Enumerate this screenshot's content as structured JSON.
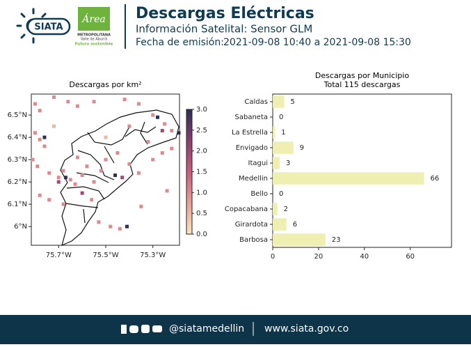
{
  "header": {
    "logo_text": "SIATA",
    "area_logo": {
      "title": "Área",
      "line1": "METROPOLITANA",
      "line2": "Valle de Aburrá",
      "tagline": "Futuro sostenible"
    },
    "title": "Descargas Eléctricas",
    "subtitle": "Información Satelital: Sensor GLM",
    "date_label": "Fecha de emisión:",
    "date_range": "2021-09-08 10:40 a 2021-09-08 15:30"
  },
  "chart_data": [
    {
      "type": "map",
      "title": "Descargas por km²",
      "xlim": [
        -75.816,
        -75.187
      ],
      "ylim": [
        5.916,
        6.594
      ],
      "xticks": [
        {
          "value": -75.7,
          "label": "75.7°W"
        },
        {
          "value": -75.5,
          "label": "75.5°W"
        },
        {
          "value": -75.3,
          "label": "75.3°W"
        }
      ],
      "yticks": [
        {
          "value": 6.5,
          "label": "6.5°N"
        },
        {
          "value": 6.4,
          "label": "6.4°N"
        },
        {
          "value": 6.3,
          "label": "6.3°N"
        },
        {
          "value": 6.2,
          "label": "6.2°N"
        },
        {
          "value": 6.1,
          "label": "6.1°N"
        },
        {
          "value": 6.0,
          "label": "6°N"
        }
      ],
      "colorbar_lim": [
        0,
        3
      ],
      "colorbar_ticks": [
        {
          "value": 0,
          "label": "0.0"
        },
        {
          "value": 0.5,
          "label": "0.5"
        },
        {
          "value": 1,
          "label": "1.0"
        },
        {
          "value": 1.5,
          "label": "1.5"
        },
        {
          "value": 2,
          "label": "2.0"
        },
        {
          "value": 2.5,
          "label": "2.5"
        },
        {
          "value": 3,
          "label": "3.0"
        }
      ],
      "colormap": [
        "#fbe6bd",
        "#e8a095",
        "#c95f7c",
        "#8a3f6e",
        "#2c2f55"
      ],
      "cells": {
        "lon": [
          -75.8,
          -75.78,
          -75.72,
          -75.66,
          -75.62,
          -75.55,
          -75.42,
          -75.36,
          -75.3,
          -75.25,
          -75.22,
          -75.8,
          -75.78,
          -75.76,
          -75.81,
          -75.79,
          -75.74,
          -75.7,
          -75.68,
          -75.65,
          -75.63,
          -75.6,
          -75.58,
          -75.55,
          -75.52,
          -75.5,
          -75.45,
          -75.4,
          -75.36,
          -75.3,
          -75.26,
          -75.22,
          -75.78,
          -75.74,
          -75.68,
          -75.53,
          -75.48,
          -75.44,
          -75.35,
          -75.24,
          -75.56,
          -75.62,
          -75.4,
          -75.32,
          -75.72,
          -75.5,
          -75.7,
          -75.43,
          -75.26,
          -75.6,
          -75.76,
          -75.67,
          -75.46,
          -75.28,
          -75.41,
          -75.19
        ],
        "lat": [
          6.55,
          6.52,
          6.58,
          6.56,
          6.54,
          6.56,
          6.57,
          6.55,
          6.5,
          6.46,
          6.43,
          6.42,
          6.39,
          6.36,
          6.3,
          6.27,
          6.24,
          6.22,
          6.25,
          6.21,
          6.19,
          6.23,
          6.27,
          6.2,
          6.25,
          6.3,
          6.33,
          6.28,
          6.24,
          6.3,
          6.33,
          6.35,
          6.14,
          6.12,
          6.1,
          6.02,
          6.0,
          5.99,
          6.09,
          6.16,
          6.12,
          6.31,
          6.45,
          6.38,
          6.45,
          6.4,
          6.2,
          6.22,
          6.43,
          6.15,
          6.4,
          6.22,
          6.23,
          6.49,
          6.0,
          6.42
        ],
        "values": [
          1,
          1,
          1,
          1,
          1,
          1,
          1,
          1,
          1,
          1,
          1,
          1,
          1,
          1,
          1,
          1,
          1,
          1,
          1,
          1,
          1,
          1,
          1,
          1,
          1,
          1,
          1,
          1,
          1,
          1,
          1,
          1,
          1,
          1,
          1,
          1,
          1,
          1,
          1,
          1,
          1,
          1,
          1,
          1,
          0.5,
          0.5,
          2,
          2,
          2,
          2,
          3,
          3,
          3,
          3,
          3,
          3
        ]
      }
    },
    {
      "type": "bar",
      "orientation": "horizontal",
      "title": "Descargas por Municipio",
      "subtitle": "Total 115 descargas",
      "categories": [
        "Caldas",
        "Sabaneta",
        "La Estrella",
        "Envigado",
        "Itagui",
        "Medellin",
        "Bello",
        "Copacabana",
        "Girardota",
        "Barbosa"
      ],
      "values": [
        5,
        0,
        1,
        9,
        3,
        66,
        0,
        2,
        6,
        23
      ],
      "color": "#eeefb1",
      "xlim": [
        0,
        78
      ],
      "xticks": [
        0,
        20,
        40,
        60
      ]
    }
  ],
  "footer": {
    "handle": "@siatamedellin",
    "url": "www.siata.gov.co"
  }
}
